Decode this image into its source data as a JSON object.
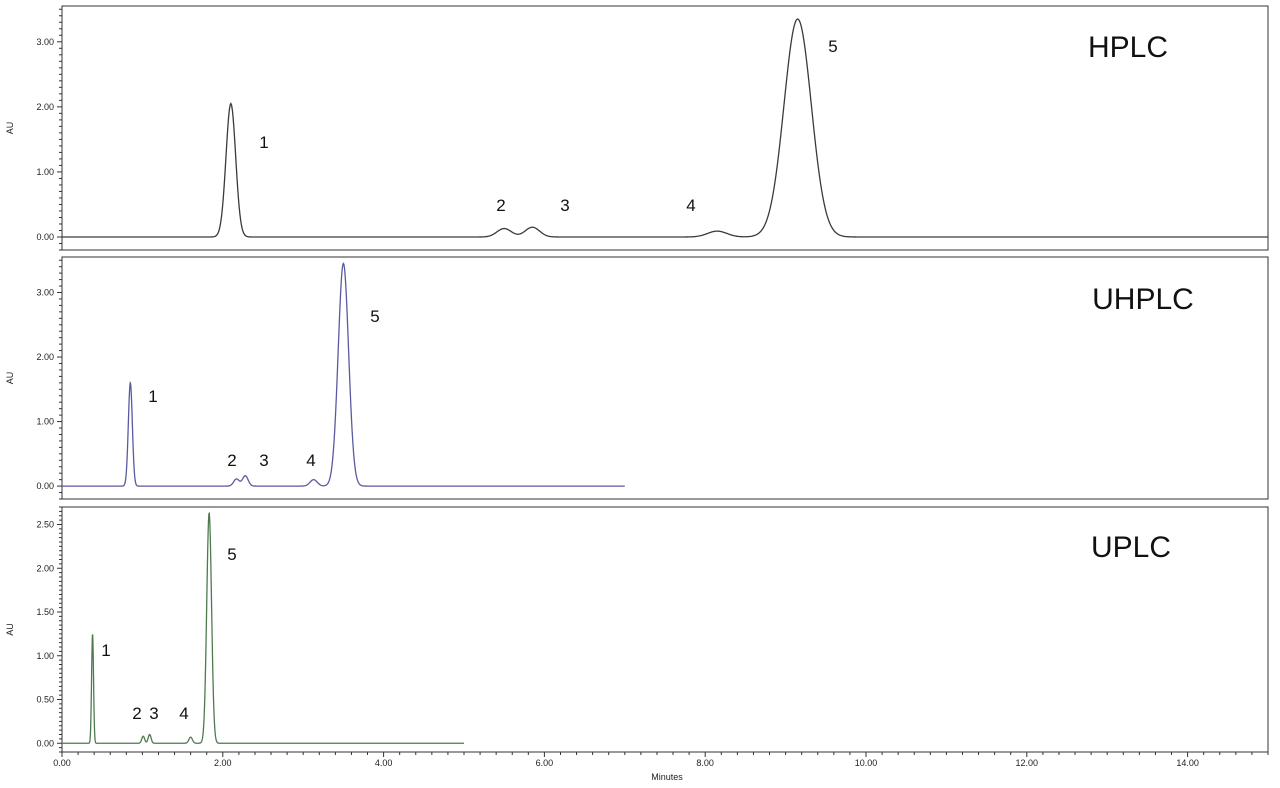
{
  "chart_data": [
    {
      "type": "line",
      "title": "HPLC",
      "ylabel": "AU",
      "xlabel": "",
      "xlim": [
        0,
        15
      ],
      "ylim": [
        -0.2,
        3.55
      ],
      "yticks": [
        "0.00",
        "1.00",
        "2.00",
        "3.00"
      ],
      "xticks": [],
      "grid": false,
      "line_color": "#3a3a3a",
      "trace_end": 15,
      "peaks": [
        {
          "label": "1",
          "rt": 2.1,
          "height": 2.05,
          "width": 0.06
        },
        {
          "label": "2",
          "rt": 5.5,
          "height": 0.13,
          "width": 0.09
        },
        {
          "label": "3",
          "rt": 5.85,
          "height": 0.15,
          "width": 0.09
        },
        {
          "label": "4",
          "rt": 8.15,
          "height": 0.09,
          "width": 0.12
        },
        {
          "label": "5",
          "rt": 9.15,
          "height": 3.35,
          "width": 0.17
        }
      ],
      "series": [
        {
          "name": "",
          "values": []
        }
      ]
    },
    {
      "type": "line",
      "title": "UHPLC",
      "ylabel": "AU",
      "xlabel": "",
      "xlim": [
        0,
        15
      ],
      "ylim": [
        -0.2,
        3.55
      ],
      "yticks": [
        "0.00",
        "1.00",
        "2.00",
        "3.00"
      ],
      "xticks": [],
      "grid": false,
      "line_color": "#5a5aa0",
      "trace_end": 7.0,
      "peaks": [
        {
          "label": "1",
          "rt": 0.85,
          "height": 1.6,
          "width": 0.025
        },
        {
          "label": "2",
          "rt": 2.17,
          "height": 0.11,
          "width": 0.035
        },
        {
          "label": "3",
          "rt": 2.28,
          "height": 0.16,
          "width": 0.035
        },
        {
          "label": "4",
          "rt": 3.13,
          "height": 0.1,
          "width": 0.045
        },
        {
          "label": "5",
          "rt": 3.5,
          "height": 3.45,
          "width": 0.065
        }
      ],
      "series": [
        {
          "name": "",
          "values": []
        }
      ]
    },
    {
      "type": "line",
      "title": "UPLC",
      "ylabel": "AU",
      "xlabel": "Minutes",
      "xlim": [
        0,
        15
      ],
      "ylim": [
        -0.1,
        2.7
      ],
      "yticks": [
        "0.00",
        "0.50",
        "1.00",
        "1.50",
        "2.00",
        "2.50"
      ],
      "xticks": [
        "0.00",
        "2.00",
        "4.00",
        "6.00",
        "8.00",
        "10.00",
        "12.00",
        "14.00"
      ],
      "grid": false,
      "line_color": "#4f7a4f",
      "trace_end": 5.0,
      "peaks": [
        {
          "label": "1",
          "rt": 0.38,
          "height": 1.25,
          "width": 0.012
        },
        {
          "label": "2",
          "rt": 1.01,
          "height": 0.08,
          "width": 0.018
        },
        {
          "label": "3",
          "rt": 1.09,
          "height": 0.1,
          "width": 0.018
        },
        {
          "label": "4",
          "rt": 1.6,
          "height": 0.07,
          "width": 0.022
        },
        {
          "label": "5",
          "rt": 1.83,
          "height": 2.63,
          "width": 0.03
        }
      ],
      "series": [
        {
          "name": "",
          "values": []
        }
      ]
    }
  ]
}
